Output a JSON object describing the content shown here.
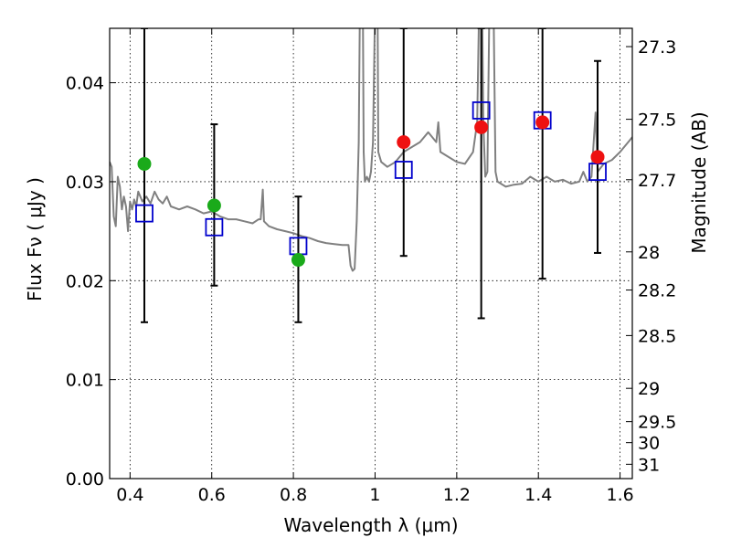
{
  "chart_data": {
    "type": "scatter",
    "xlabel": "Wavelength  λ (μm)",
    "ylabel": "Flux  Fν  ( μJy )",
    "y2label": "Magnitude (AB)",
    "xlim": [
      0.35,
      1.63
    ],
    "ylim": [
      0.0,
      0.0455
    ],
    "xticks": [
      0.4,
      0.6,
      0.8,
      1.0,
      1.2,
      1.4,
      1.6
    ],
    "xtick_labels": [
      "0.4",
      "0.6",
      "0.8",
      "1",
      "1.2",
      "1.4",
      "1.6"
    ],
    "yticks": [
      0.0,
      0.01,
      0.02,
      0.03,
      0.04
    ],
    "ytick_labels": [
      "0.00",
      "0.01",
      "0.02",
      "0.03",
      "0.04"
    ],
    "y2ticks": [
      27.3,
      27.5,
      27.7,
      28,
      28.2,
      28.5,
      29,
      29.5,
      30,
      31
    ],
    "y2tick_labels": [
      "27.3",
      "27.5",
      "27.7",
      "28",
      "28.2",
      "28.5",
      "29",
      "29.5",
      "30",
      "31"
    ],
    "grid": true,
    "colors": {
      "model": "#808080",
      "green": "#1aaa1a",
      "red": "#ee1111",
      "squares": "#0000cc",
      "errorbars": "#000000"
    },
    "series": [
      {
        "marker": "line",
        "color": "#808080",
        "points": [
          [
            0.35,
            0.032
          ],
          [
            0.355,
            0.0315
          ],
          [
            0.36,
            0.0265
          ],
          [
            0.365,
            0.0255
          ],
          [
            0.37,
            0.0305
          ],
          [
            0.375,
            0.0295
          ],
          [
            0.38,
            0.0272
          ],
          [
            0.385,
            0.0285
          ],
          [
            0.39,
            0.0275
          ],
          [
            0.395,
            0.025
          ],
          [
            0.4,
            0.028
          ],
          [
            0.405,
            0.0272
          ],
          [
            0.41,
            0.0282
          ],
          [
            0.415,
            0.0275
          ],
          [
            0.42,
            0.029
          ],
          [
            0.43,
            0.028
          ],
          [
            0.44,
            0.0285
          ],
          [
            0.45,
            0.0278
          ],
          [
            0.46,
            0.029
          ],
          [
            0.47,
            0.0282
          ],
          [
            0.48,
            0.0278
          ],
          [
            0.49,
            0.0285
          ],
          [
            0.5,
            0.0275
          ],
          [
            0.52,
            0.0272
          ],
          [
            0.54,
            0.0275
          ],
          [
            0.56,
            0.0272
          ],
          [
            0.58,
            0.0268
          ],
          [
            0.6,
            0.027
          ],
          [
            0.62,
            0.0265
          ],
          [
            0.64,
            0.0262
          ],
          [
            0.66,
            0.0262
          ],
          [
            0.68,
            0.026
          ],
          [
            0.7,
            0.0258
          ],
          [
            0.715,
            0.0262
          ],
          [
            0.72,
            0.0262
          ],
          [
            0.725,
            0.0292
          ],
          [
            0.728,
            0.026
          ],
          [
            0.74,
            0.0255
          ],
          [
            0.76,
            0.0252
          ],
          [
            0.78,
            0.025
          ],
          [
            0.8,
            0.0248
          ],
          [
            0.82,
            0.0245
          ],
          [
            0.84,
            0.0243
          ],
          [
            0.86,
            0.024
          ],
          [
            0.88,
            0.0238
          ],
          [
            0.9,
            0.0237
          ],
          [
            0.92,
            0.0236
          ],
          [
            0.935,
            0.0236
          ],
          [
            0.94,
            0.0215
          ],
          [
            0.945,
            0.021
          ],
          [
            0.95,
            0.0212
          ],
          [
            0.955,
            0.026
          ],
          [
            0.96,
            0.034
          ],
          [
            0.963,
            0.048
          ],
          [
            0.97,
            0.048
          ],
          [
            0.972,
            0.033
          ],
          [
            0.975,
            0.03
          ],
          [
            0.98,
            0.0305
          ],
          [
            0.985,
            0.03
          ],
          [
            0.99,
            0.031
          ],
          [
            0.995,
            0.034
          ],
          [
            1.0,
            0.048
          ],
          [
            1.006,
            0.048
          ],
          [
            1.008,
            0.033
          ],
          [
            1.015,
            0.032
          ],
          [
            1.03,
            0.0315
          ],
          [
            1.05,
            0.032
          ],
          [
            1.07,
            0.033
          ],
          [
            1.09,
            0.0335
          ],
          [
            1.11,
            0.034
          ],
          [
            1.13,
            0.035
          ],
          [
            1.15,
            0.034
          ],
          [
            1.155,
            0.036
          ],
          [
            1.16,
            0.033
          ],
          [
            1.18,
            0.0325
          ],
          [
            1.2,
            0.032
          ],
          [
            1.22,
            0.0318
          ],
          [
            1.24,
            0.033
          ],
          [
            1.25,
            0.036
          ],
          [
            1.255,
            0.048
          ],
          [
            1.262,
            0.048
          ],
          [
            1.265,
            0.036
          ],
          [
            1.27,
            0.0305
          ],
          [
            1.275,
            0.031
          ],
          [
            1.28,
            0.048
          ],
          [
            1.29,
            0.048
          ],
          [
            1.295,
            0.031
          ],
          [
            1.3,
            0.03
          ],
          [
            1.32,
            0.0295
          ],
          [
            1.34,
            0.0297
          ],
          [
            1.36,
            0.0298
          ],
          [
            1.38,
            0.0305
          ],
          [
            1.4,
            0.03
          ],
          [
            1.42,
            0.0305
          ],
          [
            1.44,
            0.03
          ],
          [
            1.46,
            0.0302
          ],
          [
            1.48,
            0.0298
          ],
          [
            1.5,
            0.03
          ],
          [
            1.51,
            0.031
          ],
          [
            1.52,
            0.03
          ],
          [
            1.53,
            0.0305
          ],
          [
            1.54,
            0.037
          ],
          [
            1.545,
            0.031
          ],
          [
            1.56,
            0.0318
          ],
          [
            1.58,
            0.0322
          ],
          [
            1.6,
            0.033
          ],
          [
            1.62,
            0.034
          ],
          [
            1.63,
            0.0345
          ]
        ]
      },
      {
        "marker": "error_bars",
        "color": "#000000",
        "points": [
          {
            "x": 0.435,
            "low": 0.0158,
            "high": 0.0455
          },
          {
            "x": 0.606,
            "low": 0.0195,
            "high": 0.0358
          },
          {
            "x": 0.812,
            "low": 0.0158,
            "high": 0.0285
          },
          {
            "x": 1.07,
            "low": 0.0225,
            "high": 0.0455
          },
          {
            "x": 1.26,
            "low": 0.0162,
            "high": 0.0455
          },
          {
            "x": 1.41,
            "low": 0.0202,
            "high": 0.0455
          },
          {
            "x": 1.545,
            "low": 0.0228,
            "high": 0.0422
          }
        ]
      },
      {
        "marker": "open_square",
        "color": "#0000cc",
        "points": [
          [
            0.435,
            0.0268
          ],
          [
            0.606,
            0.0254
          ],
          [
            0.812,
            0.0235
          ],
          [
            1.07,
            0.0312
          ],
          [
            1.26,
            0.0372
          ],
          [
            1.41,
            0.0362
          ],
          [
            1.545,
            0.031
          ]
        ]
      },
      {
        "marker": "circle",
        "color": "#1aaa1a",
        "points": [
          [
            0.435,
            0.0318
          ],
          [
            0.606,
            0.0276
          ],
          [
            0.812,
            0.0221
          ]
        ]
      },
      {
        "marker": "circle",
        "color": "#ee1111",
        "points": [
          [
            1.07,
            0.034
          ],
          [
            1.26,
            0.0355
          ],
          [
            1.41,
            0.036
          ],
          [
            1.545,
            0.0325
          ]
        ]
      }
    ]
  }
}
